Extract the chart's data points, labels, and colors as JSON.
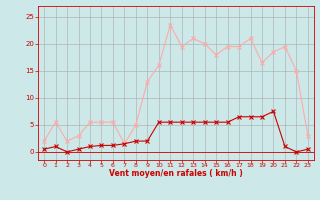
{
  "hours": [
    0,
    1,
    2,
    3,
    4,
    5,
    6,
    7,
    8,
    9,
    10,
    11,
    12,
    13,
    14,
    15,
    16,
    17,
    18,
    19,
    20,
    21,
    22,
    23
  ],
  "wind_avg": [
    0.5,
    1.0,
    0.0,
    0.5,
    1.0,
    1.2,
    1.2,
    1.5,
    2.0,
    2.0,
    5.5,
    5.5,
    5.5,
    5.5,
    5.5,
    5.5,
    5.5,
    6.5,
    6.5,
    6.5,
    7.5,
    1.0,
    0.0,
    0.5
  ],
  "wind_gust": [
    2.0,
    5.5,
    2.0,
    3.0,
    5.5,
    5.5,
    5.5,
    1.5,
    5.0,
    13.0,
    16.0,
    23.5,
    19.5,
    21.0,
    20.0,
    18.0,
    19.5,
    19.5,
    21.0,
    16.5,
    18.5,
    19.5,
    15.0,
    3.0
  ],
  "avg_color": "#cc0000",
  "gust_color": "#ffaaaa",
  "background_color": "#cce8e8",
  "grid_color": "#aaaaaa",
  "xlabel": "Vent moyen/en rafales ( km/h )",
  "xlabel_color": "#cc0000",
  "yticks": [
    0,
    5,
    10,
    15,
    20,
    25
  ],
  "ylim": [
    -1.5,
    27
  ],
  "xlim": [
    -0.5,
    23.5
  ]
}
